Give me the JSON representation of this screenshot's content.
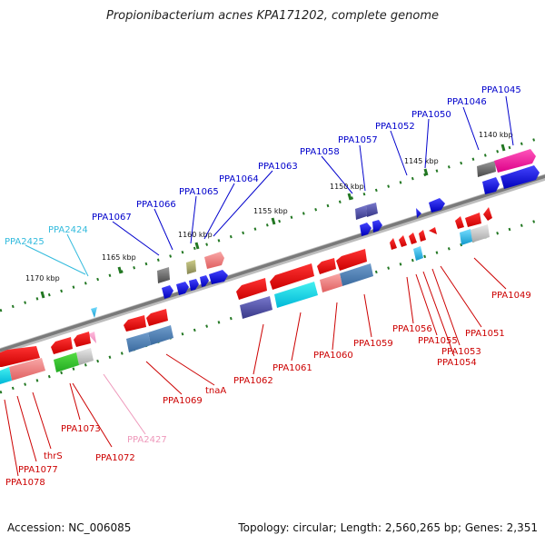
{
  "title": "Propionibacterium acnes KPA171202, complete genome",
  "footer": {
    "accession": "Accession: NC_006085",
    "summary": "Topology: circular; Length: 2,560,265 bp; Genes: 2,351"
  },
  "colors": {
    "forward_label": "#0000cc",
    "reverse_label": "#cc0000",
    "rna_forward": "#33bbdd",
    "rna_reverse": "#ee99bb",
    "backbone": "#8a8a8a",
    "tick": "#227722"
  },
  "scale_labels": [
    "1140 kbp",
    "1145 kbp",
    "1150 kbp",
    "1155 kbp",
    "1160 kbp",
    "1165 kbp",
    "1170 kbp"
  ],
  "forward_labels": [
    "PPA1045",
    "PPA1046",
    "PPA1050",
    "PPA1052",
    "PPA1057",
    "PPA1058",
    "PPA1063",
    "PPA1064",
    "PPA1065",
    "PPA1066",
    "PPA1067",
    "PPA2424",
    "PPA2425"
  ],
  "reverse_labels": [
    "PPA1049",
    "PPA1051",
    "PPA1053",
    "PPA1054",
    "PPA1055",
    "PPA1056",
    "PPA1059",
    "PPA1060",
    "PPA1061",
    "PPA1062",
    "tnaA",
    "PPA1069",
    "PPA2427",
    "PPA1072",
    "PPA1073",
    "thrS",
    "PPA1077",
    "PPA1078"
  ]
}
